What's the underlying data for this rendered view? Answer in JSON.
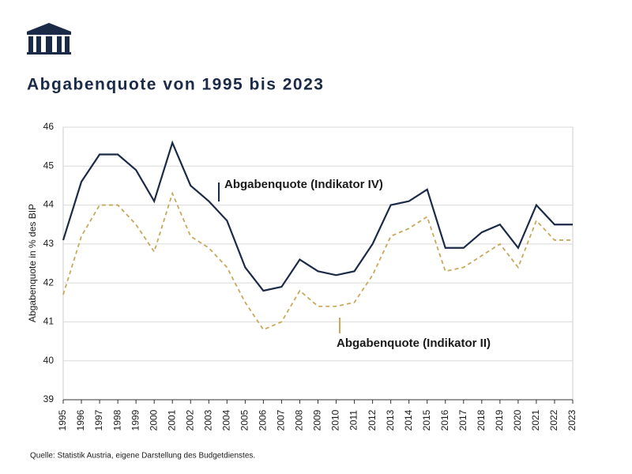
{
  "chart_data": {
    "type": "line",
    "title": "Abgabenquote von 1995 bis 2023",
    "y_label": "Abgabenquote in % des BIP",
    "source": "Quelle: Statistik Austria, eigene Darstellung des Budgetdienstes.",
    "categories": [
      "1995",
      "1996",
      "1997",
      "1998",
      "1999",
      "2000",
      "2001",
      "2002",
      "2003",
      "2004",
      "2005",
      "2006",
      "2007",
      "2008",
      "2009",
      "2010",
      "2011",
      "2012",
      "2013",
      "2014",
      "2015",
      "2016",
      "2017",
      "2018",
      "2019",
      "2020",
      "2021",
      "2022",
      "2023"
    ],
    "series": [
      {
        "name": "Abgabenquote (Indikator IV)",
        "color": "#1b2a47",
        "dash": false,
        "values": [
          43.1,
          44.6,
          45.3,
          45.3,
          44.9,
          44.1,
          45.6,
          44.5,
          44.1,
          43.6,
          42.4,
          41.8,
          41.9,
          42.6,
          42.3,
          42.2,
          42.3,
          43.0,
          44.0,
          44.1,
          44.4,
          42.9,
          42.9,
          43.3,
          43.5,
          42.9,
          44.0,
          43.5,
          43.5
        ]
      },
      {
        "name": "Abgabenquote (Indikator II)",
        "color": "#c9a85c",
        "dash": true,
        "values": [
          41.7,
          43.2,
          44.0,
          44.0,
          43.5,
          42.8,
          44.3,
          43.2,
          42.9,
          42.4,
          41.5,
          40.8,
          41.0,
          41.8,
          41.4,
          41.4,
          41.5,
          42.2,
          43.2,
          43.4,
          43.7,
          42.3,
          42.4,
          42.7,
          43.0,
          42.4,
          43.6,
          43.1,
          43.1
        ]
      }
    ],
    "ylim": [
      39,
      46
    ],
    "yticks": [
      39,
      40,
      41,
      42,
      43,
      44,
      45,
      46
    ],
    "grid": true
  }
}
